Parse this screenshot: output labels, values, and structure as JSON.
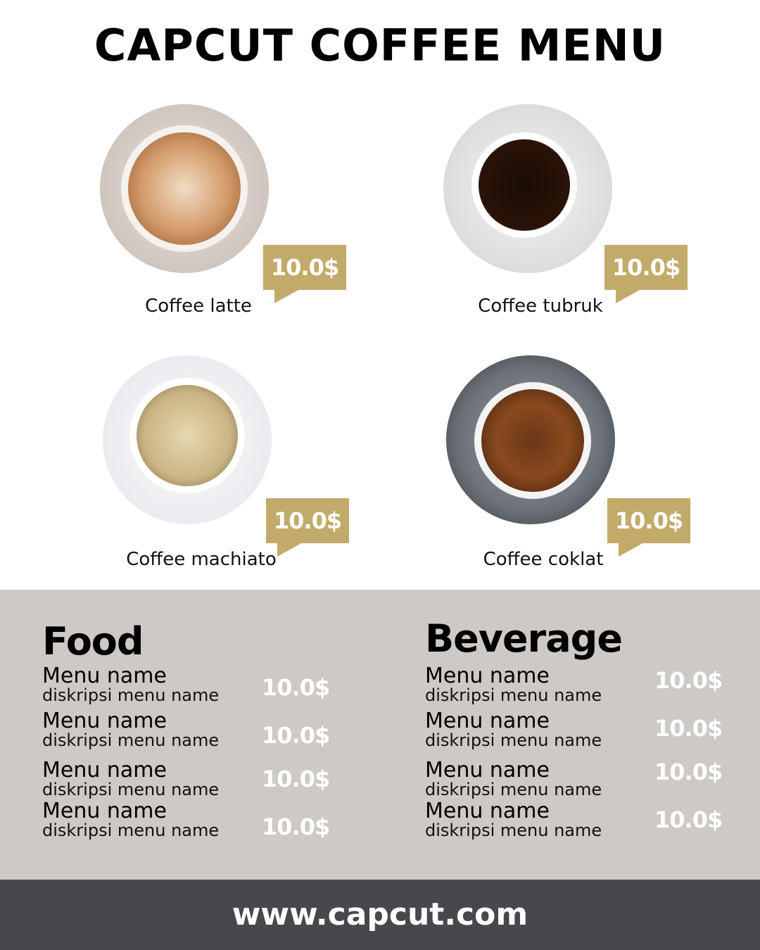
{
  "title": "CAPCUT COFFEE MENU",
  "colors": {
    "accent": "#c2ab6a",
    "menu_bg": "#cdc9c6",
    "footer_bg": "#49474b"
  },
  "coffees": [
    {
      "name": "Coffee latte",
      "price": "10.0$"
    },
    {
      "name": "Coffee tubruk",
      "price": "10.0$"
    },
    {
      "name": "Coffee machiato",
      "price": "10.0$"
    },
    {
      "name": "Coffee coklat",
      "price": "10.0$"
    }
  ],
  "food": {
    "heading": "Food",
    "items": [
      {
        "name": "Menu name",
        "desc": "diskripsi menu name",
        "price": "10.0$"
      },
      {
        "name": "Menu name",
        "desc": "diskripsi menu name",
        "price": "10.0$"
      },
      {
        "name": "Menu name",
        "desc": "diskripsi menu name",
        "price": "10.0$"
      },
      {
        "name": "Menu name",
        "desc": "diskripsi menu name",
        "price": "10.0$"
      }
    ]
  },
  "beverage": {
    "heading": "Beverage",
    "items": [
      {
        "name": "Menu name",
        "desc": "diskripsi menu name",
        "price": "10.0$"
      },
      {
        "name": "Menu name",
        "desc": "diskripsi menu name",
        "price": "10.0$"
      },
      {
        "name": "Menu name",
        "desc": "diskripsi menu name",
        "price": "10.0$"
      },
      {
        "name": "Menu name",
        "desc": "diskripsi menu name",
        "price": "10.0$"
      }
    ]
  },
  "footer": "www.capcut.com"
}
